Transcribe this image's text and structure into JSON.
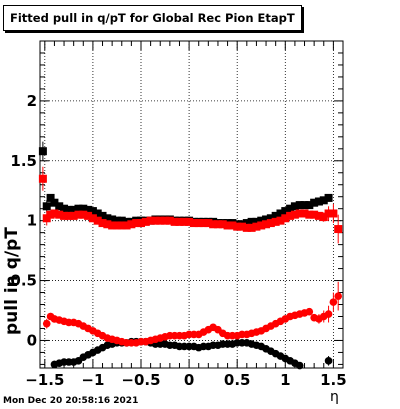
{
  "chart_data": {
    "type": "scatter",
    "title": "Fitted pull in q/pT for Global Rec Pion EtapT",
    "xlabel": "η",
    "ylabel": "pull in q/pT",
    "xlim": [
      -1.55,
      1.6
    ],
    "ylim": [
      -0.23,
      2.5
    ],
    "grid": true,
    "x_ticks": [
      -1.5,
      -1,
      -0.5,
      0,
      0.5,
      1,
      1.5
    ],
    "x_tick_labels": [
      "−1.5",
      "−1",
      "−0.5",
      "0",
      "0.5",
      "1",
      "1.5"
    ],
    "y_ticks": [
      0,
      0.5,
      1,
      1.5,
      2
    ],
    "y_tick_labels": [
      "0",
      "0.5",
      "1",
      "1.5",
      "2"
    ],
    "series": [
      {
        "color": "#000000",
        "marker": "square",
        "points": [
          [
            -1.52,
            1.58,
            0.08
          ],
          [
            -1.48,
            1.12,
            0.05
          ],
          [
            -1.44,
            1.19,
            0.02
          ],
          [
            -1.4,
            1.15,
            0.02
          ],
          [
            -1.35,
            1.12,
            0.01
          ],
          [
            -1.3,
            1.1,
            0.01
          ],
          [
            -1.25,
            1.09,
            0.01
          ],
          [
            -1.2,
            1.09,
            0.01
          ],
          [
            -1.15,
            1.1,
            0.01
          ],
          [
            -1.1,
            1.1,
            0.01
          ],
          [
            -1.05,
            1.09,
            0.01
          ],
          [
            -1.0,
            1.08,
            0.01
          ],
          [
            -0.95,
            1.06,
            0.01
          ],
          [
            -0.9,
            1.04,
            0.01
          ],
          [
            -0.85,
            1.02,
            0.01
          ],
          [
            -0.8,
            1.01,
            0.01
          ],
          [
            -0.75,
            1.0,
            0.01
          ],
          [
            -0.7,
            1.0,
            0.01
          ],
          [
            -0.65,
            0.99,
            0.01
          ],
          [
            -0.6,
            0.99,
            0.01
          ],
          [
            -0.55,
            1.0,
            0.01
          ],
          [
            -0.5,
            1.0,
            0.01
          ],
          [
            -0.45,
            1.0,
            0.01
          ],
          [
            -0.4,
            1.0,
            0.01
          ],
          [
            -0.35,
            1.01,
            0.01
          ],
          [
            -0.3,
            1.01,
            0.01
          ],
          [
            -0.25,
            1.01,
            0.01
          ],
          [
            -0.2,
            1.01,
            0.01
          ],
          [
            -0.15,
            1.0,
            0.01
          ],
          [
            -0.1,
            1.0,
            0.01
          ],
          [
            -0.05,
            1.0,
            0.01
          ],
          [
            0.0,
            1.0,
            0.01
          ],
          [
            0.05,
            0.99,
            0.01
          ],
          [
            0.1,
            0.99,
            0.01
          ],
          [
            0.15,
            0.99,
            0.01
          ],
          [
            0.2,
            0.99,
            0.01
          ],
          [
            0.25,
            0.99,
            0.01
          ],
          [
            0.3,
            0.98,
            0.01
          ],
          [
            0.35,
            0.98,
            0.01
          ],
          [
            0.4,
            0.98,
            0.01
          ],
          [
            0.45,
            0.98,
            0.01
          ],
          [
            0.5,
            0.97,
            0.01
          ],
          [
            0.55,
            0.97,
            0.01
          ],
          [
            0.6,
            0.98,
            0.01
          ],
          [
            0.65,
            0.99,
            0.01
          ],
          [
            0.7,
            0.99,
            0.01
          ],
          [
            0.75,
            1.0,
            0.01
          ],
          [
            0.8,
            1.01,
            0.01
          ],
          [
            0.85,
            1.02,
            0.01
          ],
          [
            0.9,
            1.04,
            0.01
          ],
          [
            0.95,
            1.06,
            0.01
          ],
          [
            1.0,
            1.08,
            0.01
          ],
          [
            1.05,
            1.1,
            0.01
          ],
          [
            1.1,
            1.12,
            0.01
          ],
          [
            1.15,
            1.13,
            0.01
          ],
          [
            1.2,
            1.13,
            0.01
          ],
          [
            1.25,
            1.13,
            0.02
          ],
          [
            1.3,
            1.15,
            0.02
          ],
          [
            1.35,
            1.16,
            0.02
          ],
          [
            1.4,
            1.17,
            0.02
          ],
          [
            1.45,
            1.19,
            0.03
          ]
        ]
      },
      {
        "color": "#ff0000",
        "marker": "square",
        "points": [
          [
            -1.52,
            1.35,
            0.1
          ],
          [
            -1.48,
            1.02,
            0.06
          ],
          [
            -1.44,
            1.05,
            0.03
          ],
          [
            -1.4,
            1.06,
            0.02
          ],
          [
            -1.35,
            1.05,
            0.01
          ],
          [
            -1.3,
            1.04,
            0.01
          ],
          [
            -1.25,
            1.04,
            0.01
          ],
          [
            -1.2,
            1.04,
            0.01
          ],
          [
            -1.15,
            1.05,
            0.01
          ],
          [
            -1.1,
            1.05,
            0.01
          ],
          [
            -1.05,
            1.04,
            0.01
          ],
          [
            -1.0,
            1.02,
            0.01
          ],
          [
            -0.95,
            1.0,
            0.01
          ],
          [
            -0.9,
            0.98,
            0.01
          ],
          [
            -0.85,
            0.97,
            0.01
          ],
          [
            -0.8,
            0.96,
            0.01
          ],
          [
            -0.75,
            0.96,
            0.01
          ],
          [
            -0.7,
            0.96,
            0.01
          ],
          [
            -0.65,
            0.96,
            0.01
          ],
          [
            -0.6,
            0.97,
            0.01
          ],
          [
            -0.55,
            0.98,
            0.01
          ],
          [
            -0.5,
            0.98,
            0.01
          ],
          [
            -0.45,
            0.99,
            0.01
          ],
          [
            -0.4,
            1.0,
            0.01
          ],
          [
            -0.35,
            1.0,
            0.01
          ],
          [
            -0.3,
            1.0,
            0.01
          ],
          [
            -0.25,
            1.0,
            0.01
          ],
          [
            -0.2,
            1.0,
            0.01
          ],
          [
            -0.15,
            0.99,
            0.01
          ],
          [
            -0.1,
            0.99,
            0.01
          ],
          [
            -0.05,
            0.99,
            0.01
          ],
          [
            0.0,
            0.99,
            0.01
          ],
          [
            0.05,
            0.98,
            0.01
          ],
          [
            0.1,
            0.98,
            0.01
          ],
          [
            0.15,
            0.98,
            0.01
          ],
          [
            0.2,
            0.98,
            0.01
          ],
          [
            0.25,
            0.97,
            0.01
          ],
          [
            0.3,
            0.97,
            0.01
          ],
          [
            0.35,
            0.97,
            0.01
          ],
          [
            0.4,
            0.96,
            0.01
          ],
          [
            0.45,
            0.96,
            0.01
          ],
          [
            0.5,
            0.95,
            0.01
          ],
          [
            0.55,
            0.95,
            0.01
          ],
          [
            0.6,
            0.94,
            0.01
          ],
          [
            0.65,
            0.94,
            0.01
          ],
          [
            0.7,
            0.95,
            0.01
          ],
          [
            0.75,
            0.96,
            0.01
          ],
          [
            0.8,
            0.97,
            0.01
          ],
          [
            0.85,
            0.98,
            0.01
          ],
          [
            0.9,
            0.99,
            0.01
          ],
          [
            0.95,
            1.0,
            0.01
          ],
          [
            1.0,
            1.02,
            0.01
          ],
          [
            1.05,
            1.04,
            0.01
          ],
          [
            1.1,
            1.05,
            0.01
          ],
          [
            1.15,
            1.06,
            0.01
          ],
          [
            1.2,
            1.06,
            0.01
          ],
          [
            1.25,
            1.05,
            0.01
          ],
          [
            1.3,
            1.05,
            0.01
          ],
          [
            1.35,
            1.04,
            0.02
          ],
          [
            1.4,
            1.03,
            0.04
          ],
          [
            1.45,
            1.06,
            0.06
          ],
          [
            1.5,
            1.06,
            0.08
          ],
          [
            1.55,
            0.93,
            0.12
          ]
        ]
      },
      {
        "color": "#000000",
        "marker": "circle",
        "points": [
          [
            -1.4,
            -0.2,
            0.03
          ],
          [
            -1.35,
            -0.19,
            0.02
          ],
          [
            -1.3,
            -0.18,
            0.02
          ],
          [
            -1.25,
            -0.18,
            0.01
          ],
          [
            -1.2,
            -0.18,
            0.01
          ],
          [
            -1.15,
            -0.17,
            0.01
          ],
          [
            -1.1,
            -0.14,
            0.01
          ],
          [
            -1.05,
            -0.12,
            0.01
          ],
          [
            -1.0,
            -0.1,
            0.01
          ],
          [
            -0.95,
            -0.08,
            0.01
          ],
          [
            -0.9,
            -0.06,
            0.01
          ],
          [
            -0.85,
            -0.04,
            0.01
          ],
          [
            -0.8,
            -0.03,
            0.01
          ],
          [
            -0.75,
            -0.02,
            0.01
          ],
          [
            -0.7,
            -0.02,
            0.01
          ],
          [
            -0.65,
            -0.02,
            0.01
          ],
          [
            -0.6,
            -0.01,
            0.01
          ],
          [
            -0.55,
            -0.01,
            0.01
          ],
          [
            -0.5,
            -0.01,
            0.01
          ],
          [
            -0.45,
            -0.01,
            0.01
          ],
          [
            -0.4,
            -0.02,
            0.01
          ],
          [
            -0.35,
            -0.03,
            0.01
          ],
          [
            -0.3,
            -0.03,
            0.01
          ],
          [
            -0.25,
            -0.03,
            0.01
          ],
          [
            -0.2,
            -0.04,
            0.01
          ],
          [
            -0.15,
            -0.04,
            0.01
          ],
          [
            -0.1,
            -0.05,
            0.01
          ],
          [
            -0.05,
            -0.05,
            0.01
          ],
          [
            0.0,
            -0.05,
            0.01
          ],
          [
            0.05,
            -0.05,
            0.01
          ],
          [
            0.1,
            -0.06,
            0.01
          ],
          [
            0.15,
            -0.05,
            0.01
          ],
          [
            0.2,
            -0.05,
            0.01
          ],
          [
            0.25,
            -0.04,
            0.01
          ],
          [
            0.3,
            -0.04,
            0.01
          ],
          [
            0.35,
            -0.03,
            0.01
          ],
          [
            0.4,
            -0.03,
            0.01
          ],
          [
            0.45,
            -0.03,
            0.01
          ],
          [
            0.5,
            -0.02,
            0.01
          ],
          [
            0.55,
            -0.02,
            0.01
          ],
          [
            0.6,
            -0.02,
            0.01
          ],
          [
            0.65,
            -0.03,
            0.01
          ],
          [
            0.7,
            -0.04,
            0.01
          ],
          [
            0.75,
            -0.05,
            0.01
          ],
          [
            0.8,
            -0.07,
            0.01
          ],
          [
            0.85,
            -0.09,
            0.01
          ],
          [
            0.9,
            -0.11,
            0.01
          ],
          [
            0.95,
            -0.13,
            0.01
          ],
          [
            1.0,
            -0.15,
            0.01
          ],
          [
            1.05,
            -0.17,
            0.01
          ],
          [
            1.1,
            -0.19,
            0.02
          ],
          [
            1.15,
            -0.21,
            0.02
          ],
          [
            1.45,
            -0.17,
            0.04
          ]
        ]
      },
      {
        "color": "#ff0000",
        "marker": "circle",
        "points": [
          [
            -1.48,
            0.14,
            0.04
          ],
          [
            -1.44,
            0.2,
            0.03
          ],
          [
            -1.4,
            0.18,
            0.02
          ],
          [
            -1.35,
            0.17,
            0.02
          ],
          [
            -1.3,
            0.16,
            0.01
          ],
          [
            -1.25,
            0.15,
            0.01
          ],
          [
            -1.2,
            0.15,
            0.01
          ],
          [
            -1.15,
            0.14,
            0.01
          ],
          [
            -1.1,
            0.12,
            0.01
          ],
          [
            -1.05,
            0.1,
            0.01
          ],
          [
            -1.0,
            0.08,
            0.01
          ],
          [
            -0.95,
            0.06,
            0.01
          ],
          [
            -0.9,
            0.04,
            0.01
          ],
          [
            -0.85,
            0.02,
            0.01
          ],
          [
            -0.8,
            0.01,
            0.01
          ],
          [
            -0.75,
            0.0,
            0.01
          ],
          [
            -0.7,
            -0.01,
            0.01
          ],
          [
            -0.65,
            -0.02,
            0.01
          ],
          [
            -0.6,
            -0.02,
            0.01
          ],
          [
            -0.55,
            -0.02,
            0.01
          ],
          [
            -0.5,
            -0.01,
            0.01
          ],
          [
            -0.45,
            -0.01,
            0.01
          ],
          [
            -0.4,
            0.0,
            0.01
          ],
          [
            -0.35,
            0.01,
            0.01
          ],
          [
            -0.3,
            0.02,
            0.01
          ],
          [
            -0.25,
            0.03,
            0.01
          ],
          [
            -0.2,
            0.04,
            0.01
          ],
          [
            -0.15,
            0.04,
            0.01
          ],
          [
            -0.1,
            0.04,
            0.01
          ],
          [
            -0.05,
            0.04,
            0.01
          ],
          [
            0.0,
            0.05,
            0.01
          ],
          [
            0.05,
            0.05,
            0.01
          ],
          [
            0.1,
            0.05,
            0.01
          ],
          [
            0.15,
            0.07,
            0.01
          ],
          [
            0.2,
            0.09,
            0.01
          ],
          [
            0.25,
            0.11,
            0.01
          ],
          [
            0.3,
            0.09,
            0.01
          ],
          [
            0.35,
            0.06,
            0.01
          ],
          [
            0.4,
            0.04,
            0.01
          ],
          [
            0.45,
            0.04,
            0.01
          ],
          [
            0.5,
            0.04,
            0.01
          ],
          [
            0.55,
            0.05,
            0.01
          ],
          [
            0.6,
            0.05,
            0.01
          ],
          [
            0.65,
            0.06,
            0.01
          ],
          [
            0.7,
            0.07,
            0.01
          ],
          [
            0.75,
            0.08,
            0.01
          ],
          [
            0.8,
            0.1,
            0.01
          ],
          [
            0.85,
            0.12,
            0.01
          ],
          [
            0.9,
            0.14,
            0.01
          ],
          [
            0.95,
            0.16,
            0.01
          ],
          [
            1.0,
            0.18,
            0.01
          ],
          [
            1.05,
            0.2,
            0.01
          ],
          [
            1.1,
            0.21,
            0.01
          ],
          [
            1.15,
            0.22,
            0.01
          ],
          [
            1.2,
            0.23,
            0.02
          ],
          [
            1.25,
            0.24,
            0.02
          ],
          [
            1.3,
            0.19,
            0.03
          ],
          [
            1.35,
            0.18,
            0.04
          ],
          [
            1.4,
            0.2,
            0.05
          ],
          [
            1.45,
            0.22,
            0.07
          ],
          [
            1.5,
            0.32,
            0.08
          ],
          [
            1.55,
            0.37,
            0.12
          ]
        ]
      }
    ]
  },
  "timestamp": "Mon Dec 20 20:58:16 2021"
}
